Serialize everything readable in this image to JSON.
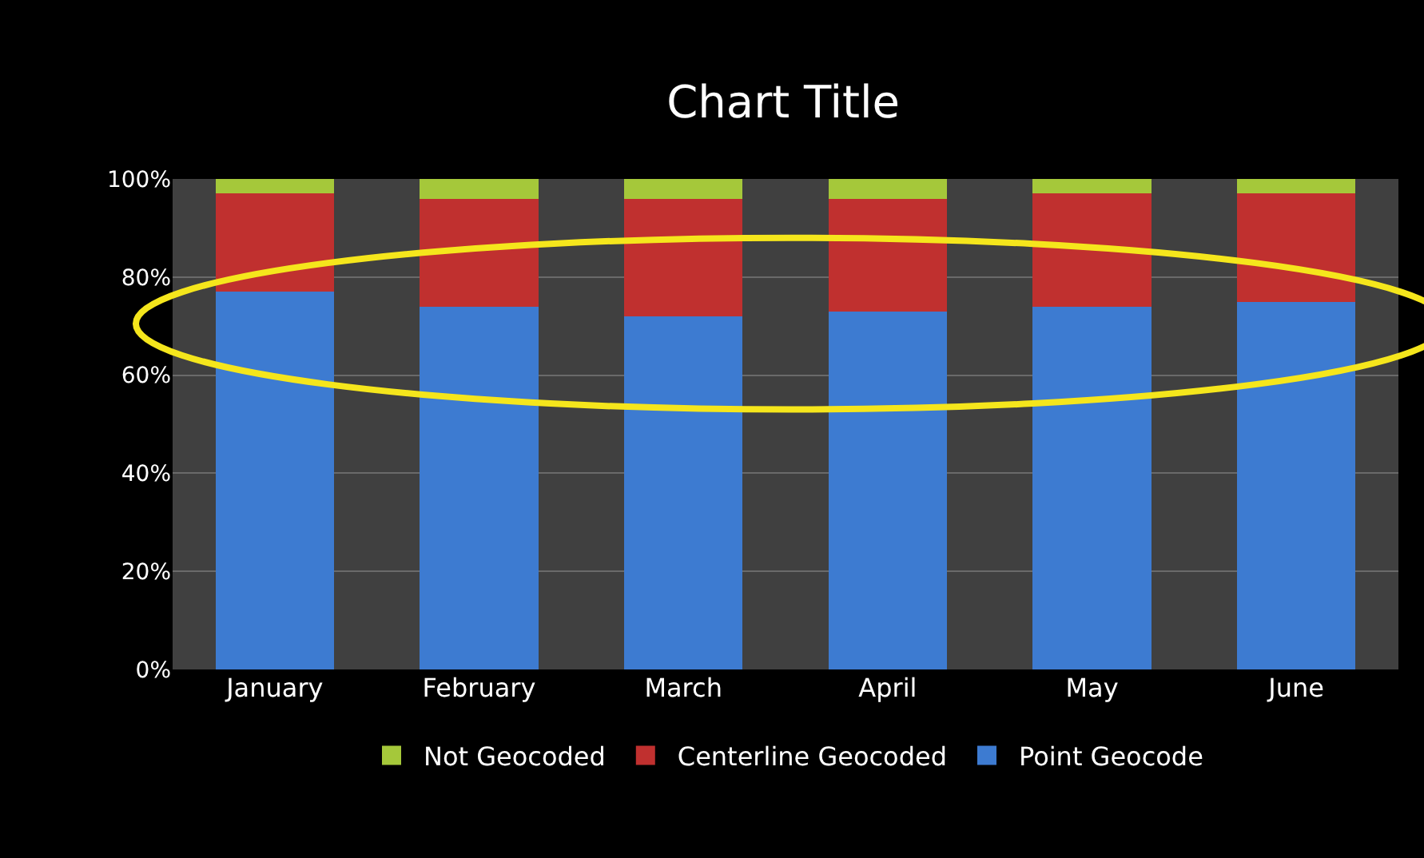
{
  "chart_data": {
    "type": "bar",
    "title": "Chart Title",
    "stacked": true,
    "categories": [
      "January",
      "February",
      "March",
      "April",
      "May",
      "June"
    ],
    "series": [
      {
        "name": "Point Geocode",
        "color": "#3d7bd1",
        "values": [
          77,
          74,
          72,
          73,
          74,
          75
        ]
      },
      {
        "name": "Centerline Geocoded",
        "color": "#c0302f",
        "values": [
          20,
          22,
          24,
          23,
          23,
          22
        ]
      },
      {
        "name": "Not Geocoded",
        "color": "#a5c83a",
        "values": [
          3,
          4,
          4,
          4,
          3,
          3
        ]
      }
    ],
    "ylim": [
      0,
      100
    ],
    "yticks": [
      {
        "value": 0,
        "label": "0%"
      },
      {
        "value": 20,
        "label": "20%"
      },
      {
        "value": 40,
        "label": "40%"
      },
      {
        "value": 60,
        "label": "60%"
      },
      {
        "value": 80,
        "label": "80%"
      },
      {
        "value": 100,
        "label": "100%"
      }
    ],
    "grid": "y",
    "legend": "bottom"
  }
}
